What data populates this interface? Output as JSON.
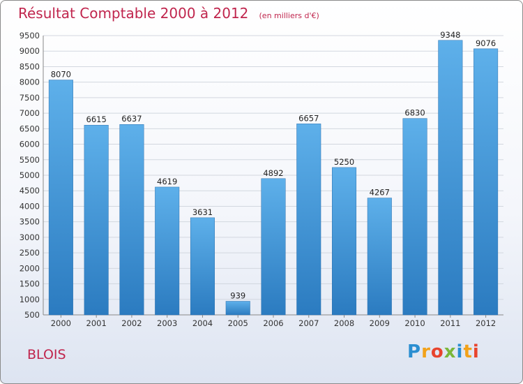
{
  "header": {
    "title": "Résultat Comptable 2000 à 2012",
    "unit": "(en milliers d'€)"
  },
  "footer": {
    "town": "BLOIS",
    "logo_letters": [
      {
        "ch": "P",
        "color": "#2a8ed1"
      },
      {
        "ch": "r",
        "color": "#f2a21a"
      },
      {
        "ch": "o",
        "color": "#e8442e"
      },
      {
        "ch": "x",
        "color": "#7bb73a"
      },
      {
        "ch": "i",
        "color": "#2a8ed1"
      },
      {
        "ch": "t",
        "color": "#f2a21a"
      },
      {
        "ch": "i",
        "color": "#e8442e"
      }
    ]
  },
  "chart_data": {
    "type": "bar",
    "categories": [
      "2000",
      "2001",
      "2002",
      "2003",
      "2004",
      "2005",
      "2006",
      "2007",
      "2008",
      "2009",
      "2010",
      "2011",
      "2012"
    ],
    "values": [
      8070,
      6615,
      6637,
      4619,
      3631,
      939,
      4892,
      6657,
      5250,
      4267,
      6830,
      9348,
      9076
    ],
    "data_labels": [
      "8070",
      "6615",
      "6637",
      "4619",
      "3631",
      "939",
      "4892",
      "6657",
      "5250",
      "4267",
      "6830",
      "9348",
      "9076"
    ],
    "ylim": [
      500,
      9500
    ],
    "yticks": [
      500,
      1000,
      1500,
      2000,
      2500,
      3000,
      3500,
      4000,
      4500,
      5000,
      5500,
      6000,
      6500,
      7000,
      7500,
      8000,
      8500,
      9000,
      9500
    ],
    "grid": true,
    "bar_color": "#4a9fe0",
    "title": "Résultat Comptable 2000 à 2012",
    "xlabel": "",
    "ylabel": ""
  }
}
